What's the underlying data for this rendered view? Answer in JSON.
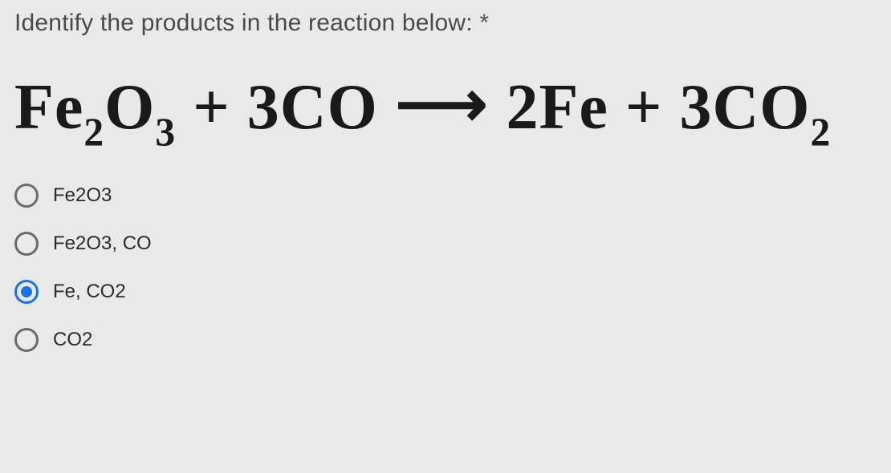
{
  "question_text": "Identify the products in the reaction below:",
  "required_marker": "*",
  "equation": {
    "reactant1_elem1": "Fe",
    "reactant1_sub1": "2",
    "reactant1_elem2": "O",
    "reactant1_sub2": "3",
    "plus1": " + ",
    "reactant2_coef": "3",
    "reactant2_formula": "CO",
    "arrow": "⟶",
    "product1_coef": "2",
    "product1_formula": "Fe",
    "plus2": " + ",
    "product2_coef": "3",
    "product2_elem": "CO",
    "product2_sub": "2"
  },
  "options": [
    {
      "label": "Fe2O3",
      "selected": false
    },
    {
      "label": "Fe2O3, CO",
      "selected": false
    },
    {
      "label": "Fe, CO2",
      "selected": true
    },
    {
      "label": "CO2",
      "selected": false
    }
  ],
  "colors": {
    "background": "#e8e9e8",
    "text": "#1a1a1a",
    "question_text": "#4a4a4a",
    "radio_border": "#6b6b6b",
    "radio_selected": "#1a73e8"
  }
}
